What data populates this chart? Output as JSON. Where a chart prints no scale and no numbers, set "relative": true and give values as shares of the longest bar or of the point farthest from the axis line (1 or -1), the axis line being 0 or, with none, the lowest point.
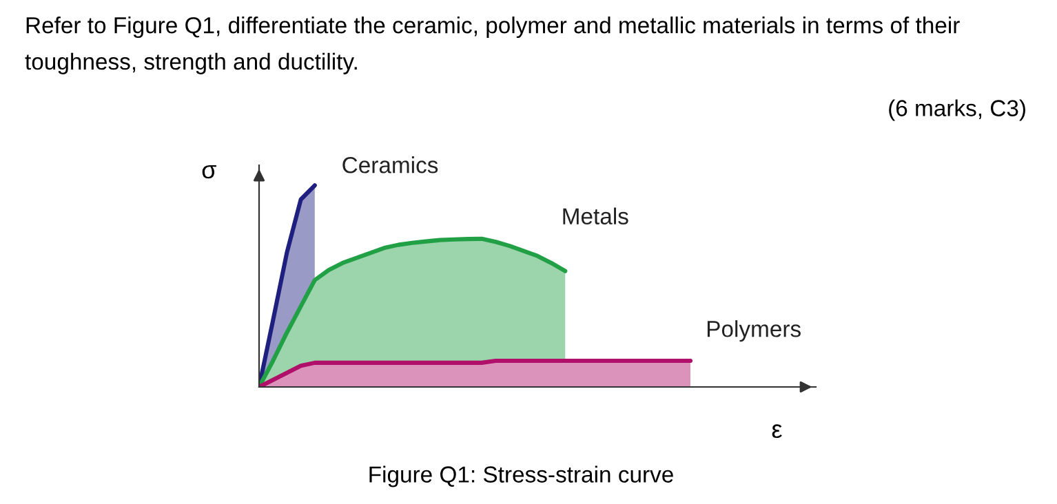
{
  "chart_data": {
    "type": "area",
    "relative": true,
    "title": "Refer to Figure Q1, differentiate the ceramic, polymer and metallic materials in terms of their toughness, strength and ductility.",
    "subtitle": "(6 marks, C3)",
    "annotations": [
      "Figure Q1: Stress-strain curve"
    ],
    "xlabel": "ε",
    "ylabel": "σ",
    "categories": [
      null,
      null,
      null,
      null,
      null,
      null,
      null,
      null,
      null,
      null,
      null,
      null,
      null,
      null,
      null,
      null,
      null,
      null,
      null,
      null,
      null,
      null,
      null,
      null,
      null,
      null,
      null,
      null,
      null,
      null,
      null,
      null
    ],
    "series": [
      {
        "name": "Ceramics",
        "color": "#1f1f80",
        "values": [
          0,
          0.33,
          0.667,
          0.93,
          1.0,
          null,
          null,
          null,
          null,
          null,
          null,
          null,
          null,
          null,
          null,
          null,
          null,
          null,
          null,
          null,
          null,
          null,
          null,
          null,
          null,
          null,
          null,
          null,
          null,
          null,
          null,
          null
        ]
      },
      {
        "name": "Metals",
        "color": "#22a045",
        "values": [
          0,
          0.13,
          0.27,
          0.4,
          0.53,
          0.58,
          0.615,
          0.64,
          0.665,
          0.69,
          0.705,
          0.715,
          0.722,
          0.729,
          0.732,
          0.734,
          0.735,
          0.72,
          0.7,
          0.675,
          0.65,
          0.615,
          0.575,
          null,
          null,
          null,
          null,
          null,
          null,
          null,
          null,
          null
        ]
      },
      {
        "name": "Polymers",
        "color": "#b0106a",
        "values": [
          0,
          0.035,
          0.07,
          0.105,
          0.12,
          0.12,
          0.12,
          0.12,
          0.12,
          0.12,
          0.12,
          0.12,
          0.12,
          0.12,
          0.12,
          0.12,
          0.12,
          0.13,
          0.13,
          0.13,
          0.13,
          0.13,
          0.13,
          0.13,
          0.13,
          0.13,
          0.13,
          0.13,
          0.13,
          0.13,
          0.13,
          0.13
        ]
      }
    ],
    "tick_labels": false
  }
}
